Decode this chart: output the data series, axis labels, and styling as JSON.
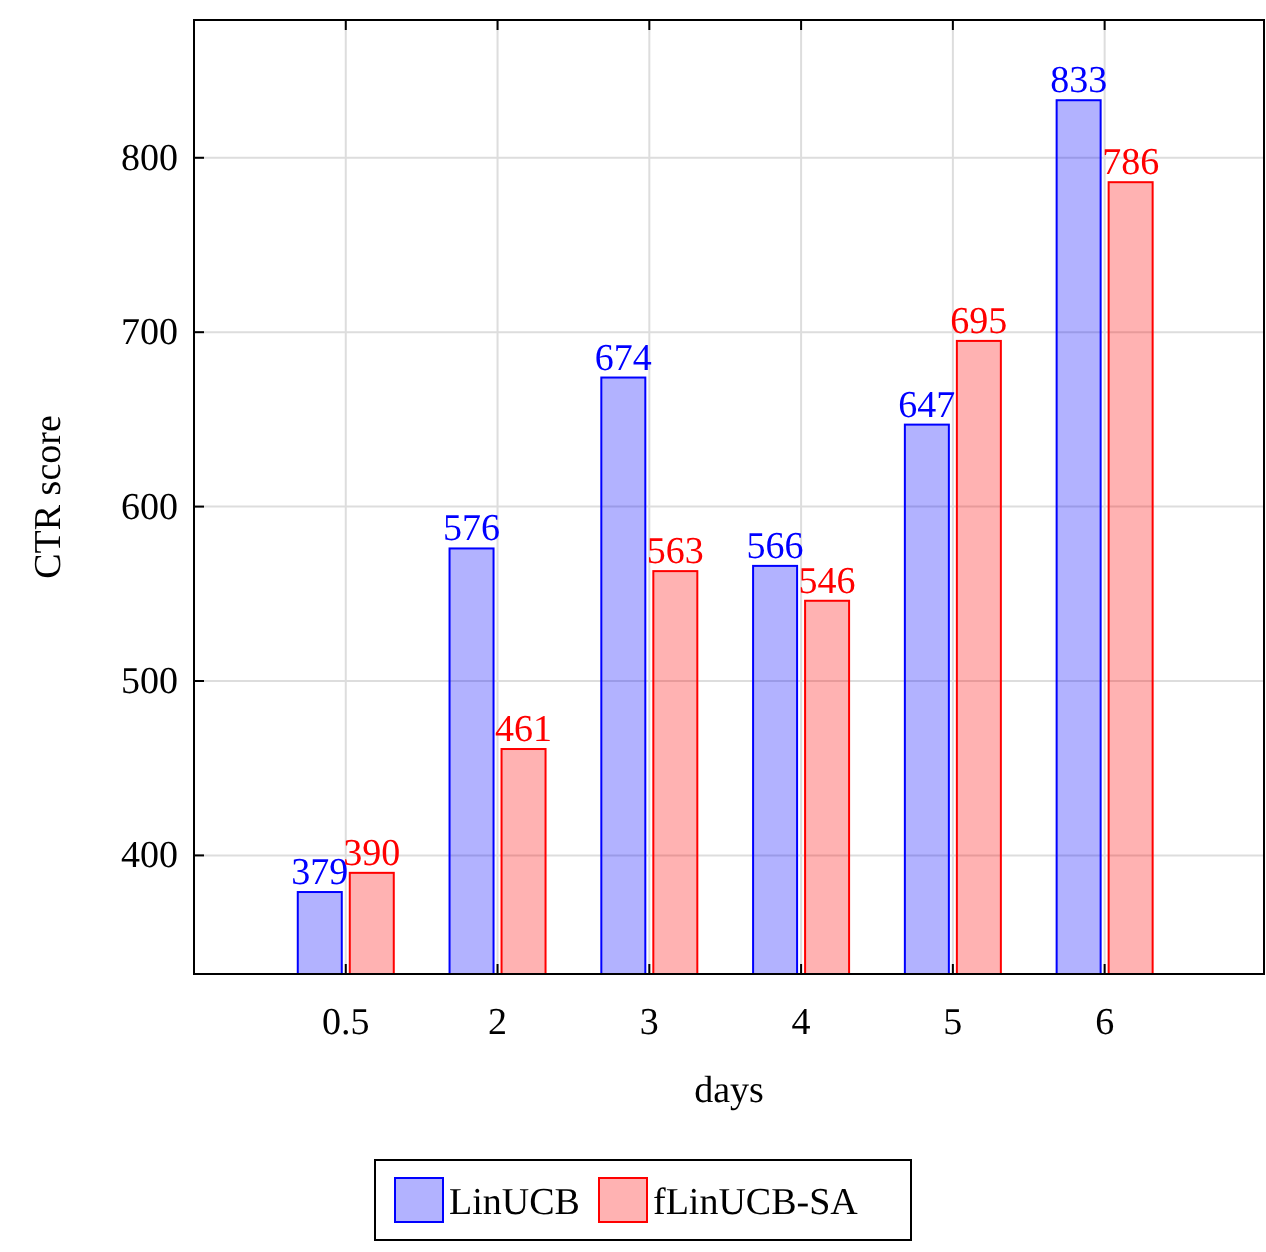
{
  "chart_data": {
    "type": "bar",
    "xlabel": "days",
    "ylabel": "CTR score",
    "categories": [
      "0.5",
      "2",
      "3",
      "4",
      "5",
      "6"
    ],
    "series": [
      {
        "name": "LinUCB",
        "color": "#0000ff",
        "values": [
          379,
          576,
          674,
          566,
          647,
          833
        ]
      },
      {
        "name": "fLinUCB-SA",
        "color": "#ff0000",
        "values": [
          390,
          461,
          563,
          546,
          695,
          786
        ]
      }
    ],
    "ylim": [
      332,
      879
    ],
    "yticks": [
      400,
      500,
      600,
      700,
      800
    ],
    "grid": true,
    "data_labels": true,
    "legend": "bottom"
  }
}
